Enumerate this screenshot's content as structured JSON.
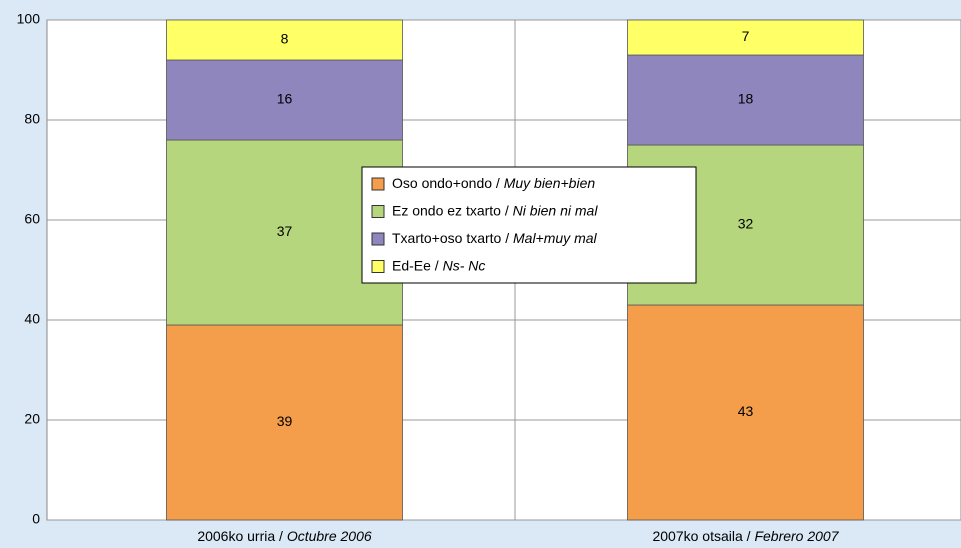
{
  "chart_data": {
    "type": "stacked_bar",
    "categories": [
      "2006ko urria / Octubre 2006",
      "2007ko otsaila / Febrero 2007"
    ],
    "series": [
      {
        "name": "Oso ondo+ondo / Muy bien+bien",
        "color": "#f49d4a",
        "values": [
          39,
          43
        ]
      },
      {
        "name": "Ez ondo ez txarto / Ni bien ni mal",
        "color": "#b5d67c",
        "values": [
          37,
          32
        ]
      },
      {
        "name": "Txarto+oso txarto / Mal+muy mal",
        "color": "#8e86bd",
        "values": [
          16,
          18
        ]
      },
      {
        "name": "Ed-Ee / Ns- Nc",
        "color": "#ffff66",
        "values": [
          8,
          7
        ]
      }
    ],
    "ylim": [
      0,
      100
    ],
    "yticks": [
      0,
      20,
      40,
      60,
      80,
      100
    ],
    "grid": true
  }
}
